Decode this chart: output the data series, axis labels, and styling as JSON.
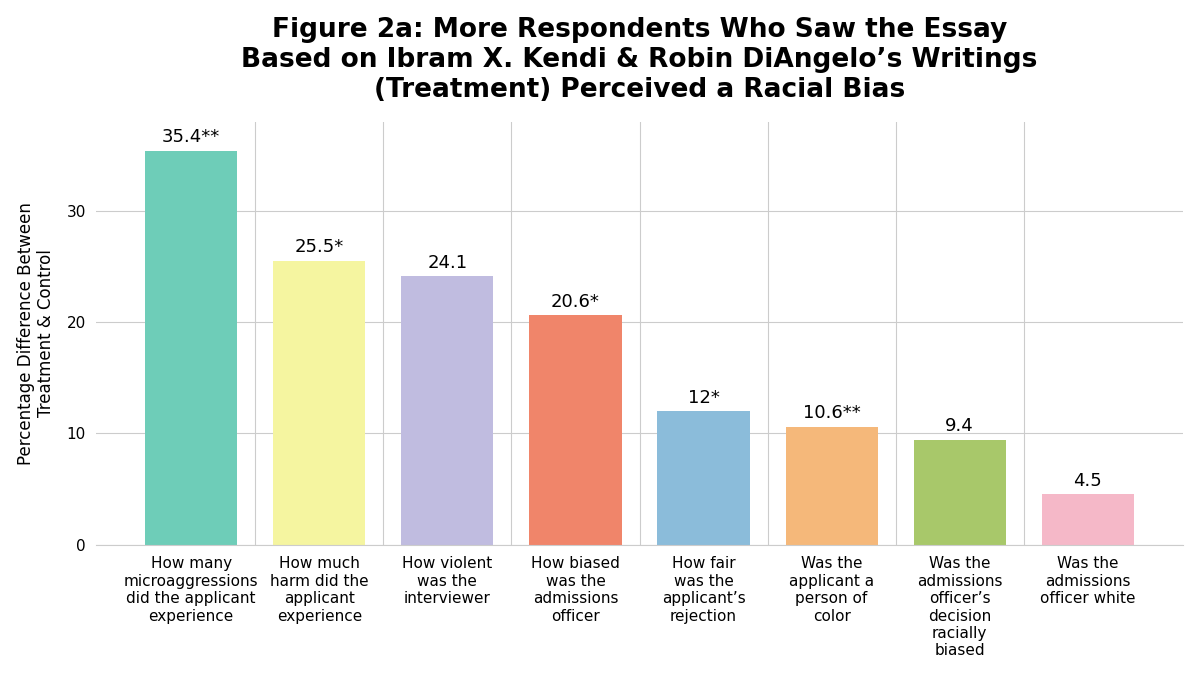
{
  "title_line1": "Figure 2a: More Respondents Who Saw the Essay",
  "title_line2": "Based on Ibram X. Kendi & Robin DiAngelo’s Writings",
  "title_line3": "(Treatment) Perceived a Racial Bias",
  "ylabel": "Percentage Difference Between\nTreatment & Control",
  "categories": [
    "How many\nmicroaggressions\ndid the applicant\nexperience",
    "How much\nharm did the\napplicant\nexperience",
    "How violent\nwas the\ninterviewer",
    "How biased\nwas the\nadmissions\nofficer",
    "How fair\nwas the\napplicant’s\nrejection",
    "Was the\napplicant a\nperson of\ncolor",
    "Was the\nadmissions\nofficer’s\ndecision\nracially\nbiased",
    "Was the\nadmissions\nofficer white"
  ],
  "values": [
    35.4,
    25.5,
    24.1,
    20.6,
    12.0,
    10.6,
    9.4,
    4.5
  ],
  "labels": [
    "35.4**",
    "25.5*",
    "24.1",
    "20.6*",
    "12*",
    "10.6**",
    "9.4",
    "4.5"
  ],
  "bar_colors": [
    "#6ecdb8",
    "#f5f5a0",
    "#c0bce0",
    "#f0856a",
    "#8bbcda",
    "#f5b87a",
    "#a8c86a",
    "#f5b8c8"
  ],
  "ylim": [
    0,
    38
  ],
  "yticks": [
    0,
    10,
    20,
    30
  ],
  "background_color": "#ffffff",
  "title_fontsize": 19,
  "tick_fontsize": 11,
  "ylabel_fontsize": 12,
  "bar_label_fontsize": 13
}
